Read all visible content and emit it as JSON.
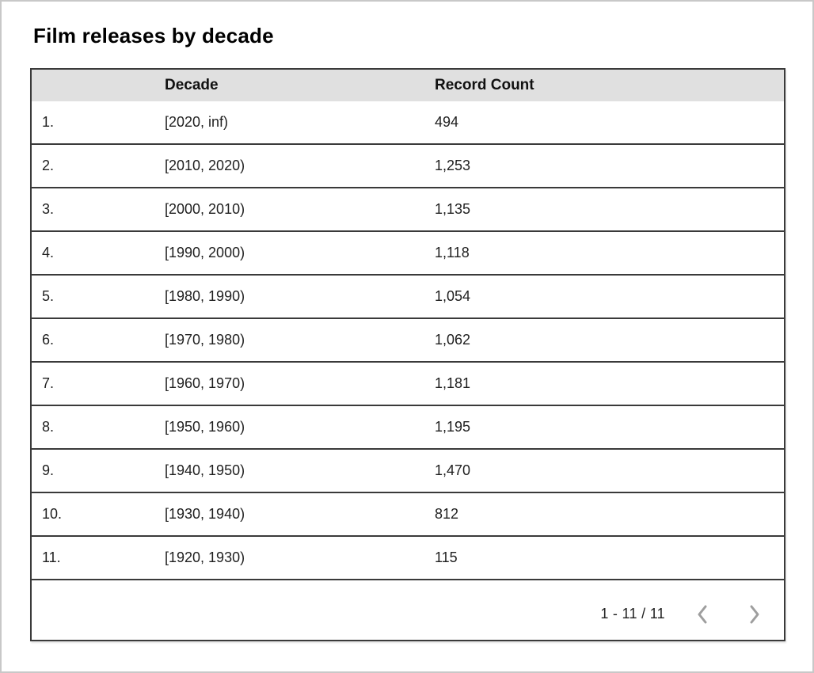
{
  "title": "Film releases by decade",
  "colors": {
    "page_border": "#c8c8c8",
    "table_border": "#3a3a3a",
    "header_bg": "#e0e0e0",
    "cell_text": "#1f1f1f",
    "chevron": "#9e9e9e"
  },
  "table": {
    "headers": [
      "Decade",
      "Record Count"
    ],
    "rows": [
      {
        "index": "1.",
        "decade": "[2020, inf)",
        "count": "494"
      },
      {
        "index": "2.",
        "decade": "[2010, 2020)",
        "count": "1,253"
      },
      {
        "index": "3.",
        "decade": "[2000, 2010)",
        "count": "1,135"
      },
      {
        "index": "4.",
        "decade": "[1990, 2000)",
        "count": "1,118"
      },
      {
        "index": "5.",
        "decade": "[1980, 1990)",
        "count": "1,054"
      },
      {
        "index": "6.",
        "decade": "[1970, 1980)",
        "count": "1,062"
      },
      {
        "index": "7.",
        "decade": "[1960, 1970)",
        "count": "1,181"
      },
      {
        "index": "8.",
        "decade": "[1950, 1960)",
        "count": "1,195"
      },
      {
        "index": "9.",
        "decade": "[1940, 1950)",
        "count": "1,470"
      },
      {
        "index": "10.",
        "decade": "[1930, 1940)",
        "count": "812"
      },
      {
        "index": "11.",
        "decade": "[1920, 1930)",
        "count": "115"
      }
    ]
  },
  "pagination": {
    "range_label": "1 - 11 / 11",
    "prev_icon": "chevron-left",
    "next_icon": "chevron-right"
  },
  "chart_data": {
    "type": "table",
    "title": "Film releases by decade",
    "columns": [
      "Decade",
      "Record Count"
    ],
    "categories": [
      "[2020, inf)",
      "[2010, 2020)",
      "[2000, 2010)",
      "[1990, 2000)",
      "[1980, 1990)",
      "[1970, 1980)",
      "[1960, 1970)",
      "[1950, 1960)",
      "[1940, 1950)",
      "[1930, 1940)",
      "[1920, 1930)"
    ],
    "values": [
      494,
      1253,
      1135,
      1118,
      1054,
      1062,
      1181,
      1195,
      1470,
      812,
      115
    ],
    "row_range_shown": "1 - 11 / 11"
  }
}
